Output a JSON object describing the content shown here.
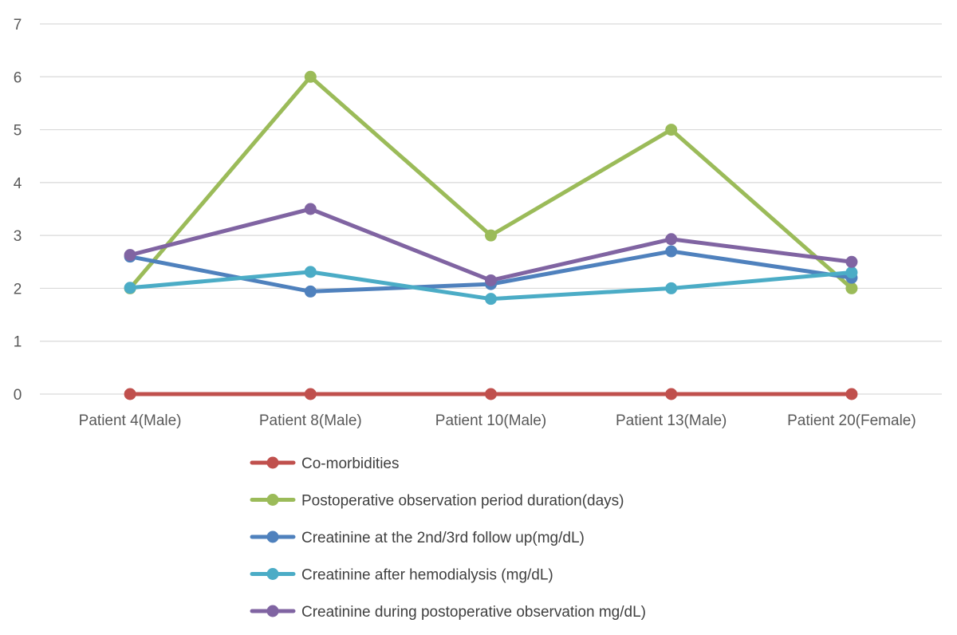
{
  "chart_data": {
    "type": "line",
    "title": "",
    "xlabel": "",
    "ylabel": "",
    "categories": [
      "Patient 4(Male)",
      "Patient 8(Male)",
      "Patient 10(Male)",
      "Patient 13(Male)",
      "Patient 20(Female)"
    ],
    "ylim": [
      0,
      7
    ],
    "yticks": [
      "0",
      "1",
      "2",
      "3",
      "4",
      "5",
      "6",
      "7"
    ],
    "grid": true,
    "legend_position": "bottom",
    "series": [
      {
        "name": "Co-morbidities",
        "color": "#c0504d",
        "values": [
          0,
          0,
          0,
          0,
          0
        ]
      },
      {
        "name": "Postoperative observation period duration(days)",
        "color": "#9bbb59",
        "values": [
          2,
          6,
          3,
          5,
          2
        ]
      },
      {
        "name": "Creatinine at the 2nd/3rd follow up(mg/dL)",
        "color": "#4f81bd",
        "values": [
          2.6,
          1.94,
          2.08,
          2.7,
          2.2
        ]
      },
      {
        "name": "Creatinine after hemodialysis (mg/dL)",
        "color": "#4bacc6",
        "values": [
          2.01,
          2.31,
          1.8,
          2.0,
          2.3
        ]
      },
      {
        "name": "Creatinine during postoperative observation mg/dL)",
        "color": "#8064a2",
        "values": [
          2.63,
          3.5,
          2.15,
          2.93,
          2.5
        ]
      }
    ]
  }
}
